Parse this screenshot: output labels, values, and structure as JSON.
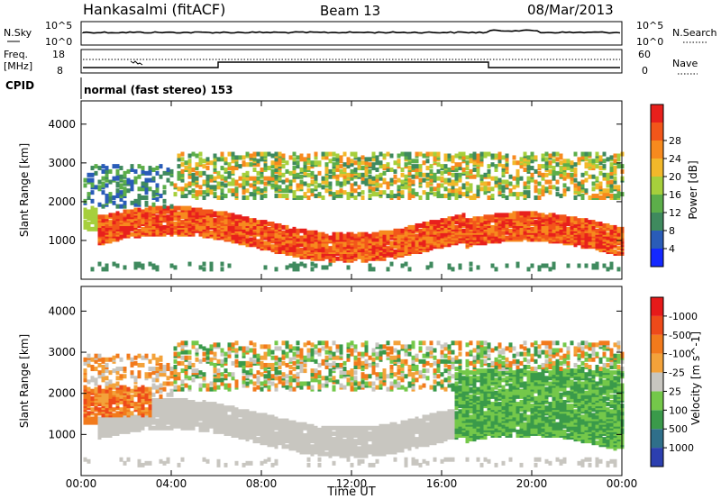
{
  "header": {
    "station": "Hankasalmi (fitACF)",
    "beam": "Beam 13",
    "date": "08/Mar/2013"
  },
  "noise_panel": {
    "left_label": "N.Sky",
    "left_ticks": [
      "10^5",
      "10^0"
    ],
    "right_ticks": [
      "10^5",
      "10^0"
    ],
    "right_label": "N.Search"
  },
  "freq_panel": {
    "left_label_line1": "Freq.",
    "left_label_line2": "[MHz]",
    "left_ticks": [
      "18",
      "8"
    ],
    "right_ticks": [
      "60",
      "0"
    ],
    "right_label": "Nave"
  },
  "cpid": {
    "label": "CPID",
    "value": "normal (fast stereo) 153"
  },
  "x_axis": {
    "title": "Time UT",
    "ticks": [
      "00:00",
      "04:00",
      "08:00",
      "12:00",
      "16:00",
      "20:00",
      "00:00"
    ]
  },
  "chart_data": [
    {
      "type": "heatmap",
      "title": "",
      "ylabel": "Slant Range [km]",
      "yticks": [
        "1000",
        "2000",
        "3000",
        "4000"
      ],
      "ylim": [
        0,
        4600
      ],
      "xlim_hours": [
        0,
        24
      ],
      "colorbar_label": "Power [dB]",
      "colorbar_ticks": [
        "4",
        "8",
        "12",
        "16",
        "20",
        "24",
        "28"
      ],
      "colorbar_colors": [
        "#1428ff",
        "#2a5cb8",
        "#3f8a5e",
        "#5cae4a",
        "#a6cf3c",
        "#f2b82a",
        "#f78a1e",
        "#f2561a",
        "#e8201c"
      ],
      "features": [
        {
          "desc": "main band",
          "x_hours": [
            1,
            24
          ],
          "range_km": [
            900,
            1700
          ],
          "power": "high"
        },
        {
          "desc": "upper band",
          "x_hours": [
            4,
            24
          ],
          "range_km": [
            2000,
            3200
          ],
          "power": "medium"
        }
      ]
    },
    {
      "type": "heatmap",
      "title": "",
      "ylabel": "Slant Range [km]",
      "yticks": [
        "1000",
        "2000",
        "3000",
        "4000"
      ],
      "ylim": [
        0,
        4600
      ],
      "xlim_hours": [
        0,
        24
      ],
      "colorbar_label": "Velocity [m s^-1]",
      "colorbar_ticks": [
        "1000",
        "500",
        "100",
        "25",
        "-25",
        "-100",
        "-500",
        "-1000"
      ],
      "colorbar_colors": [
        "#2c3fb0",
        "#2f6f8a",
        "#3a9a4a",
        "#74c84a",
        "#c8c6c0",
        "#f3a23a",
        "#f27a1c",
        "#ee4a1a",
        "#e61a1a"
      ]
    }
  ],
  "colors": {
    "ground_scatter": "#c8c6c0",
    "trace": "#000000"
  }
}
